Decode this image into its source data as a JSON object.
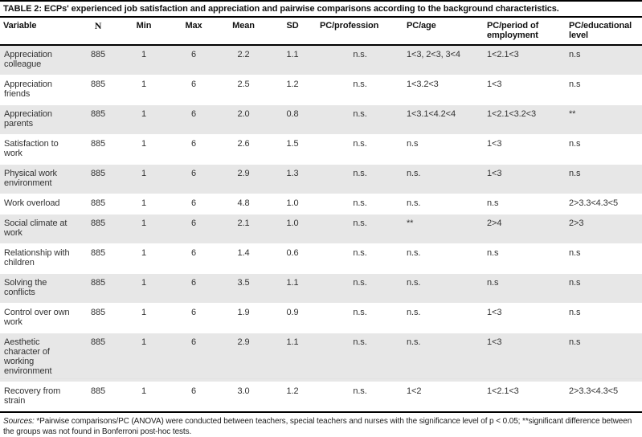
{
  "title": "TABLE 2: ECPs' experienced job satisfaction and appreciation and pairwise comparisons according to the background characteristics.",
  "table": {
    "columns": [
      "Variable",
      "N",
      "Min",
      "Max",
      "Mean",
      "SD",
      "PC/profession",
      "PC/age",
      "PC/period of employment",
      "PC/educational level"
    ],
    "rows": [
      {
        "variable": "Appreciation colleague",
        "n": "885",
        "min": "1",
        "max": "6",
        "mean": "2.2",
        "sd": "1.1",
        "pc_profession": "n.s.",
        "pc_age": "1<3, 2<3, 3<4",
        "pc_period": "1<2.1<3",
        "pc_education": "n.s"
      },
      {
        "variable": "Appreciation friends",
        "n": "885",
        "min": "1",
        "max": "6",
        "mean": "2.5",
        "sd": "1.2",
        "pc_profession": "n.s.",
        "pc_age": "1<3.2<3",
        "pc_period": "1<3",
        "pc_education": "n.s"
      },
      {
        "variable": "Appreciation parents",
        "n": "885",
        "min": "1",
        "max": "6",
        "mean": "2.0",
        "sd": "0.8",
        "pc_profession": "n.s.",
        "pc_age": "1<3.1<4.2<4",
        "pc_period": "1<2.1<3.2<3",
        "pc_education": "**"
      },
      {
        "variable": "Satisfaction to work",
        "n": "885",
        "min": "1",
        "max": "6",
        "mean": "2.6",
        "sd": "1.5",
        "pc_profession": "n.s.",
        "pc_age": "n.s",
        "pc_period": "1<3",
        "pc_education": "n.s"
      },
      {
        "variable": "Physical work environment",
        "n": "885",
        "min": "1",
        "max": "6",
        "mean": "2.9",
        "sd": "1.3",
        "pc_profession": "n.s.",
        "pc_age": "n.s.",
        "pc_period": "1<3",
        "pc_education": "n.s"
      },
      {
        "variable": "Work overload",
        "n": "885",
        "min": "1",
        "max": "6",
        "mean": "4.8",
        "sd": "1.0",
        "pc_profession": "n.s.",
        "pc_age": "n.s.",
        "pc_period": "n.s",
        "pc_education": "2>3.3<4.3<5"
      },
      {
        "variable": "Social climate at work",
        "n": "885",
        "min": "1",
        "max": "6",
        "mean": "2.1",
        "sd": "1.0",
        "pc_profession": "n.s.",
        "pc_age": "**",
        "pc_period": "2>4",
        "pc_education": "2>3"
      },
      {
        "variable": "Relationship with children",
        "n": "885",
        "min": "1",
        "max": "6",
        "mean": "1.4",
        "sd": "0.6",
        "pc_profession": "n.s.",
        "pc_age": "n.s.",
        "pc_period": "n.s",
        "pc_education": "n.s"
      },
      {
        "variable": "Solving the conflicts",
        "n": "885",
        "min": "1",
        "max": "6",
        "mean": "3.5",
        "sd": "1.1",
        "pc_profession": "n.s.",
        "pc_age": "n.s.",
        "pc_period": "n.s",
        "pc_education": "n.s"
      },
      {
        "variable": "Control over own work",
        "n": "885",
        "min": "1",
        "max": "6",
        "mean": "1.9",
        "sd": "0.9",
        "pc_profession": "n.s.",
        "pc_age": "n.s.",
        "pc_period": "1<3",
        "pc_education": "n.s"
      },
      {
        "variable": "Aesthetic character of working environment",
        "n": "885",
        "min": "1",
        "max": "6",
        "mean": "2.9",
        "sd": "1.1",
        "pc_profession": "n.s.",
        "pc_age": "n.s.",
        "pc_period": "1<3",
        "pc_education": "n.s"
      },
      {
        "variable": "Recovery from strain",
        "n": "885",
        "min": "1",
        "max": "6",
        "mean": "3.0",
        "sd": "1.2",
        "pc_profession": "n.s.",
        "pc_age": "1<2",
        "pc_period": "1<2.1<3",
        "pc_education": "2>3.3<4.3<5"
      }
    ]
  },
  "footnote": {
    "label": "Sources:",
    "text": " *Pairwise comparisons/PC (ANOVA) were conducted between teachers, special teachers and nurses with the significance level of p < 0.05; **significant difference between the groups was not found in Bonferroni post-hoc tests."
  },
  "colors": {
    "stripe": "#e7e7e7",
    "rule": "#000000",
    "text": "#333333"
  }
}
